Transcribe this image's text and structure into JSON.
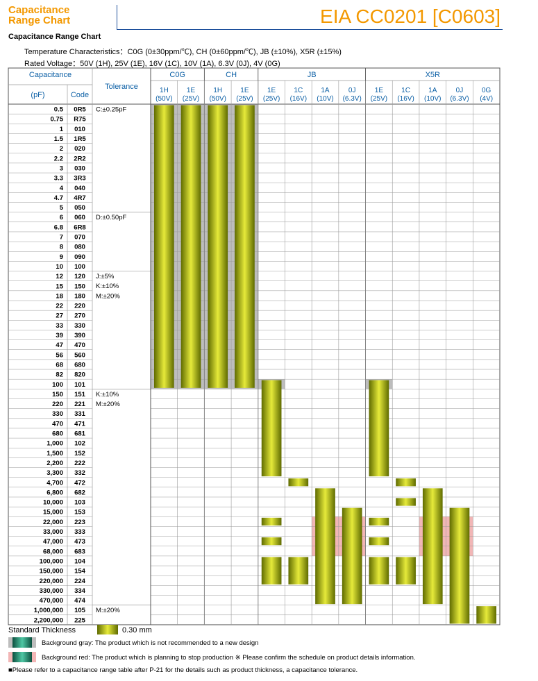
{
  "header": {
    "title_line1": "Capacitance",
    "title_line2": "Range Chart",
    "part": "EIA CC0201 [C0603]"
  },
  "subtitle": "Capacitance Range Chart",
  "temperature_characteristics": "Temperature Characteristics：C0G (0±30ppm/℃), CH (0±60ppm/℃), JB (±10%), X5R (±15%)",
  "rated_voltage": "Rated Voltage：50V (1H), 25V (1E), 16V (1C), 10V (1A), 6.3V (0J), 4V (0G)",
  "table": {
    "head_capacitance": "Capacitance",
    "head_pf": "(pF)",
    "head_code": "Code",
    "head_tolerance": "Tolerance",
    "groups": [
      {
        "name": "C0G",
        "span": 2
      },
      {
        "name": "CH",
        "span": 2
      },
      {
        "name": "JB",
        "span": 4
      },
      {
        "name": "X5R",
        "span": 5
      }
    ],
    "columns": [
      {
        "code": "1H",
        "voltage": "(50V)"
      },
      {
        "code": "1E",
        "voltage": "(25V)"
      },
      {
        "code": "1H",
        "voltage": "(50V)"
      },
      {
        "code": "1E",
        "voltage": "(25V)"
      },
      {
        "code": "1E",
        "voltage": "(25V)"
      },
      {
        "code": "1C",
        "voltage": "(16V)"
      },
      {
        "code": "1A",
        "voltage": "(10V)"
      },
      {
        "code": "0J",
        "voltage": "(6.3V)"
      },
      {
        "code": "1E",
        "voltage": "(25V)"
      },
      {
        "code": "1C",
        "voltage": "(16V)"
      },
      {
        "code": "1A",
        "voltage": "(10V)"
      },
      {
        "code": "0J",
        "voltage": "(6.3V)"
      },
      {
        "code": "0G",
        "voltage": "(4V)"
      }
    ],
    "rows": [
      {
        "pf": "0.5",
        "code": "0R5"
      },
      {
        "pf": "0.75",
        "code": "R75"
      },
      {
        "pf": "1",
        "code": "010"
      },
      {
        "pf": "1.5",
        "code": "1R5"
      },
      {
        "pf": "2",
        "code": "020"
      },
      {
        "pf": "2.2",
        "code": "2R2"
      },
      {
        "pf": "3",
        "code": "030"
      },
      {
        "pf": "3.3",
        "code": "3R3"
      },
      {
        "pf": "4",
        "code": "040"
      },
      {
        "pf": "4.7",
        "code": "4R7"
      },
      {
        "pf": "5",
        "code": "050"
      },
      {
        "pf": "6",
        "code": "060"
      },
      {
        "pf": "6.8",
        "code": "6R8"
      },
      {
        "pf": "7",
        "code": "070"
      },
      {
        "pf": "8",
        "code": "080"
      },
      {
        "pf": "9",
        "code": "090"
      },
      {
        "pf": "10",
        "code": "100"
      },
      {
        "pf": "12",
        "code": "120"
      },
      {
        "pf": "15",
        "code": "150"
      },
      {
        "pf": "18",
        "code": "180"
      },
      {
        "pf": "22",
        "code": "220"
      },
      {
        "pf": "27",
        "code": "270"
      },
      {
        "pf": "33",
        "code": "330"
      },
      {
        "pf": "39",
        "code": "390"
      },
      {
        "pf": "47",
        "code": "470"
      },
      {
        "pf": "56",
        "code": "560"
      },
      {
        "pf": "68",
        "code": "680"
      },
      {
        "pf": "82",
        "code": "820"
      },
      {
        "pf": "100",
        "code": "101"
      },
      {
        "pf": "150",
        "code": "151"
      },
      {
        "pf": "220",
        "code": "221"
      },
      {
        "pf": "330",
        "code": "331"
      },
      {
        "pf": "470",
        "code": "471"
      },
      {
        "pf": "680",
        "code": "681"
      },
      {
        "pf": "1,000",
        "code": "102"
      },
      {
        "pf": "1,500",
        "code": "152"
      },
      {
        "pf": "2,200",
        "code": "222"
      },
      {
        "pf": "3,300",
        "code": "332"
      },
      {
        "pf": "4,700",
        "code": "472"
      },
      {
        "pf": "6,800",
        "code": "682"
      },
      {
        "pf": "10,000",
        "code": "103"
      },
      {
        "pf": "15,000",
        "code": "153"
      },
      {
        "pf": "22,000",
        "code": "223"
      },
      {
        "pf": "33,000",
        "code": "333"
      },
      {
        "pf": "47,000",
        "code": "473"
      },
      {
        "pf": "68,000",
        "code": "683"
      },
      {
        "pf": "100,000",
        "code": "104"
      },
      {
        "pf": "150,000",
        "code": "154"
      },
      {
        "pf": "220,000",
        "code": "224"
      },
      {
        "pf": "330,000",
        "code": "334"
      },
      {
        "pf": "470,000",
        "code": "474"
      },
      {
        "pf": "1,000,000",
        "code": "105"
      },
      {
        "pf": "2,200,000",
        "code": "225"
      }
    ],
    "tolerance_groups": [
      {
        "start": 0,
        "end": 10,
        "lines": [
          "C:±0.25pF"
        ]
      },
      {
        "start": 11,
        "end": 16,
        "lines": [
          "D:±0.50pF"
        ]
      },
      {
        "start": 17,
        "end": 28,
        "lines": [
          "J:±5%",
          "K:±10%",
          "M:±20%"
        ]
      },
      {
        "start": 29,
        "end": 50,
        "lines": [
          "K:±10%",
          "M:±20%"
        ]
      },
      {
        "start": 51,
        "end": 52,
        "lines": [
          "M:±20%"
        ]
      }
    ],
    "bars": [
      {
        "col": 0,
        "from": 0,
        "to": 28
      },
      {
        "col": 1,
        "from": 0,
        "to": 28
      },
      {
        "col": 2,
        "from": 0,
        "to": 28
      },
      {
        "col": 3,
        "from": 0,
        "to": 28
      },
      {
        "col": 4,
        "from": 28,
        "to": 37
      },
      {
        "col": 4,
        "from": 42,
        "to": 42
      },
      {
        "col": 4,
        "from": 44,
        "to": 44
      },
      {
        "col": 4,
        "from": 46,
        "to": 48
      },
      {
        "col": 5,
        "from": 38,
        "to": 38
      },
      {
        "col": 5,
        "from": 46,
        "to": 48
      },
      {
        "col": 6,
        "from": 39,
        "to": 50
      },
      {
        "col": 7,
        "from": 41,
        "to": 50
      },
      {
        "col": 8,
        "from": 28,
        "to": 37
      },
      {
        "col": 8,
        "from": 42,
        "to": 42
      },
      {
        "col": 8,
        "from": 44,
        "to": 44
      },
      {
        "col": 8,
        "from": 46,
        "to": 48
      },
      {
        "col": 9,
        "from": 38,
        "to": 38
      },
      {
        "col": 9,
        "from": 40,
        "to": 40
      },
      {
        "col": 9,
        "from": 46,
        "to": 48
      },
      {
        "col": 10,
        "from": 39,
        "to": 50
      },
      {
        "col": 11,
        "from": 41,
        "to": 52
      },
      {
        "col": 12,
        "from": 51,
        "to": 52
      }
    ],
    "gray_cells": [
      {
        "col": 0,
        "from": 0,
        "to": 28
      },
      {
        "col": 1,
        "from": 0,
        "to": 28
      },
      {
        "col": 2,
        "from": 0,
        "to": 28
      },
      {
        "col": 3,
        "from": 0,
        "to": 28
      },
      {
        "col": 4,
        "from": 28,
        "to": 28
      },
      {
        "col": 8,
        "from": 28,
        "to": 28
      }
    ],
    "red_cells": [
      {
        "col": 6,
        "from": 42,
        "to": 45
      },
      {
        "col": 7,
        "from": 42,
        "to": 45
      },
      {
        "col": 10,
        "from": 42,
        "to": 45
      },
      {
        "col": 11,
        "from": 42,
        "to": 45
      }
    ]
  },
  "legend": {
    "standard_thickness": "Standard Thickness",
    "thickness_value": "0.30 mm",
    "gray_text": "Background gray: The product which is not recommended to a new design",
    "red_text": "Background red: The product which is planning to stop production ※ Please confirm the schedule on product details information.",
    "note": "■Please refer to a capacitance range table after P-21 for the details such as product thickness, a capacitance tolerance."
  },
  "colors": {
    "orange": "#f39800",
    "blue": "#1d4f9c",
    "header_blue": "#0b5fa5",
    "bar_dark": "#5f6b00",
    "bar_light": "#e6ea3a",
    "gray_bg": "#bdbdbd",
    "red_bg": "#f2b6b6"
  }
}
